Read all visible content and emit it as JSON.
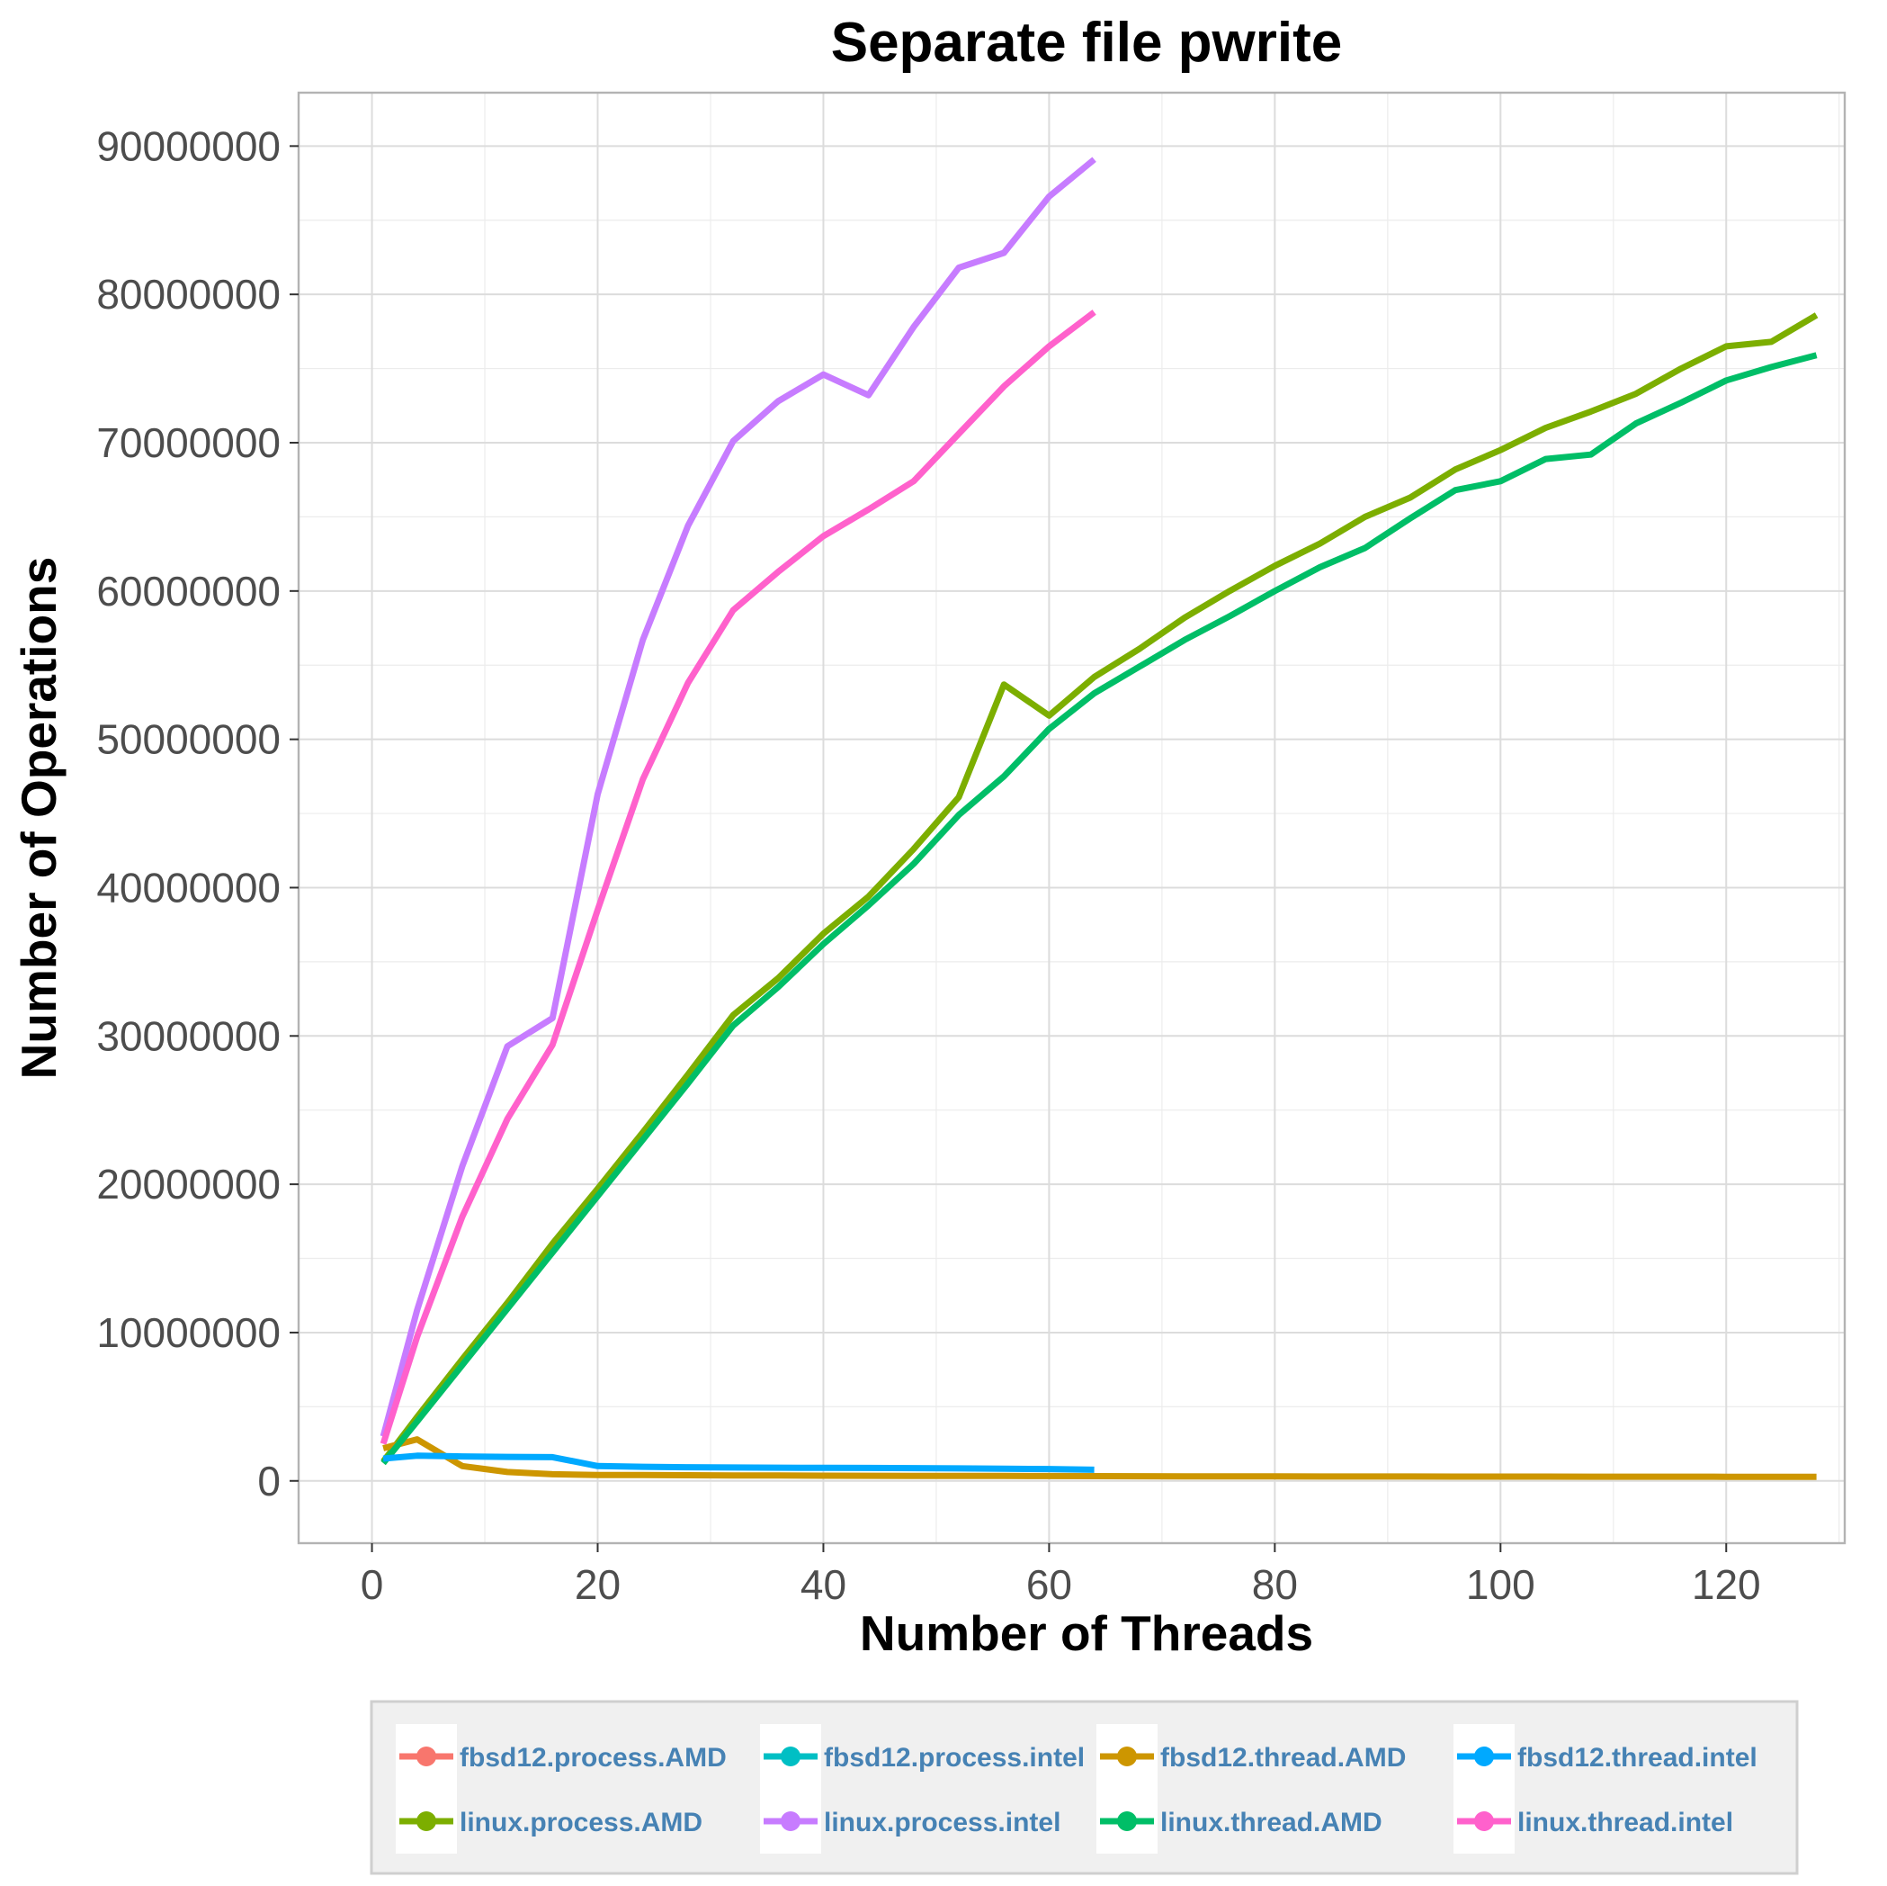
{
  "chart_data": {
    "type": "line",
    "title": "Separate file pwrite",
    "xlabel": "Number of Threads",
    "ylabel": "Number of Operations",
    "xlim": [
      -6.5,
      130.5
    ],
    "ylim": [
      -4200000,
      93600000
    ],
    "x_ticks": [
      0,
      20,
      40,
      60,
      80,
      100,
      120
    ],
    "y_ticks": [
      0,
      10000000,
      20000000,
      30000000,
      40000000,
      50000000,
      60000000,
      70000000,
      80000000,
      90000000
    ],
    "x_tick_labels": [
      "0",
      "20",
      "40",
      "60",
      "80",
      "100",
      "120"
    ],
    "y_tick_labels": [
      "0",
      "10000000",
      "20000000",
      "30000000",
      "40000000",
      "50000000",
      "60000000",
      "70000000",
      "80000000",
      "90000000"
    ],
    "grid": true,
    "legend_position": "bottom",
    "series": [
      {
        "name": "fbsd12.process.AMD",
        "color": "#f8766d",
        "x": [],
        "y": []
      },
      {
        "name": "linux.process.AMD",
        "color": "#7cae00",
        "x": [
          1,
          4,
          8,
          12,
          16,
          20,
          24,
          28,
          32,
          36,
          40,
          44,
          48,
          52,
          56,
          60,
          64,
          68,
          72,
          76,
          80,
          84,
          88,
          92,
          96,
          100,
          104,
          108,
          112,
          116,
          120,
          124,
          128
        ],
        "y": [
          1300000,
          4300000,
          8200000,
          12000000,
          16000000,
          19700000,
          23500000,
          27400000,
          31400000,
          33900000,
          36900000,
          39400000,
          42600000,
          46100000,
          53700000,
          51600000,
          54200000,
          56100000,
          58200000,
          60000000,
          61700000,
          63200000,
          65000000,
          66300000,
          68200000,
          69500000,
          71000000,
          72100000,
          73300000,
          75000000,
          76500000,
          76800000,
          78600000
        ]
      },
      {
        "name": "fbsd12.process.intel",
        "color": "#00bfc4",
        "x": [],
        "y": []
      },
      {
        "name": "linux.process.intel",
        "color": "#c77cff",
        "x": [
          1,
          4,
          8,
          12,
          16,
          20,
          24,
          28,
          32,
          36,
          40,
          44,
          48,
          52,
          56,
          60,
          64
        ],
        "y": [
          3000000,
          11500000,
          21200000,
          29300000,
          31200000,
          46300000,
          56700000,
          64400000,
          70100000,
          72800000,
          74600000,
          73200000,
          77800000,
          81800000,
          82800000,
          86600000,
          89100000
        ]
      },
      {
        "name": "fbsd12.thread.AMD",
        "color": "#cd9600",
        "x": [
          1,
          4,
          8,
          12,
          16,
          20,
          24,
          28,
          32,
          36,
          40,
          44,
          48,
          52,
          56,
          60,
          64,
          68,
          72,
          76,
          80,
          84,
          88,
          92,
          96,
          100,
          104,
          108,
          112,
          116,
          120,
          124,
          128
        ],
        "y": [
          2200000,
          2800000,
          1000000,
          600000,
          450000,
          400000,
          390000,
          380000,
          370000,
          360000,
          350000,
          345000,
          340000,
          335000,
          330000,
          325000,
          320000,
          315000,
          310000,
          305000,
          300000,
          298000,
          296000,
          294000,
          292000,
          290000,
          288000,
          286000,
          284000,
          282000,
          280000,
          278000,
          276000
        ]
      },
      {
        "name": "linux.thread.AMD",
        "color": "#00be67",
        "x": [
          1,
          4,
          8,
          12,
          16,
          20,
          24,
          28,
          32,
          36,
          40,
          44,
          48,
          52,
          56,
          60,
          64,
          68,
          72,
          76,
          80,
          84,
          88,
          92,
          96,
          100,
          104,
          108,
          112,
          116,
          120,
          124,
          128
        ],
        "y": [
          1200000,
          4000000,
          7800000,
          11600000,
          15400000,
          19200000,
          23000000,
          26800000,
          30700000,
          33300000,
          36200000,
          38800000,
          41600000,
          44900000,
          47500000,
          50700000,
          53100000,
          54900000,
          56700000,
          58300000,
          60000000,
          61600000,
          62900000,
          64900000,
          66800000,
          67400000,
          68900000,
          69200000,
          71300000,
          72700000,
          74200000,
          75100000,
          75900000
        ]
      },
      {
        "name": "fbsd12.thread.intel",
        "color": "#00a9ff",
        "x": [
          1,
          4,
          8,
          12,
          16,
          20,
          24,
          28,
          32,
          36,
          40,
          44,
          48,
          52,
          56,
          60,
          64
        ],
        "y": [
          1500000,
          1700000,
          1650000,
          1620000,
          1600000,
          1000000,
          950000,
          920000,
          900000,
          890000,
          880000,
          870000,
          860000,
          840000,
          820000,
          800000,
          750000
        ]
      },
      {
        "name": "linux.thread.intel",
        "color": "#ff61cc",
        "x": [
          1,
          4,
          8,
          12,
          16,
          20,
          24,
          28,
          32,
          36,
          40,
          44,
          48,
          52,
          56,
          60,
          64
        ],
        "y": [
          2500000,
          9700000,
          17800000,
          24400000,
          29400000,
          38500000,
          47300000,
          53800000,
          58700000,
          61300000,
          63700000,
          65500000,
          67400000,
          70600000,
          73800000,
          76500000,
          78800000
        ]
      }
    ]
  }
}
